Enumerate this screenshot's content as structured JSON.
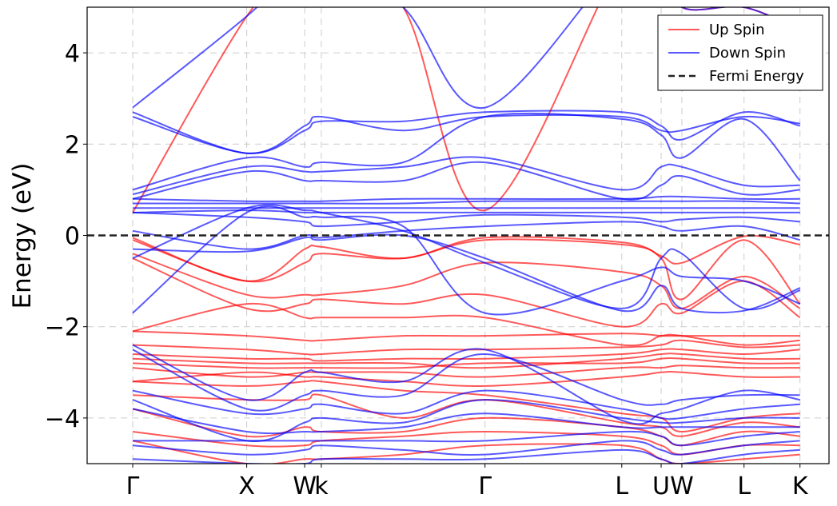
{
  "chart_data": {
    "type": "line",
    "title": "",
    "xlabel": "",
    "ylabel": "Energy (eV)",
    "ylim": [
      -5,
      5
    ],
    "xlim": [
      -0.22,
      3.36
    ],
    "grid": true,
    "legend_position": "top-right",
    "yticks": [
      {
        "value": 4,
        "label": "4"
      },
      {
        "value": 2,
        "label": "2"
      },
      {
        "value": 0,
        "label": "0"
      },
      {
        "value": -2,
        "label": "−2"
      },
      {
        "value": -4,
        "label": "−4"
      }
    ],
    "kpoints": [
      {
        "label": "Γ",
        "x": 0.0
      },
      {
        "label": "X",
        "x": 0.55
      },
      {
        "label": "W",
        "x": 0.83
      },
      {
        "label": "k",
        "x": 0.91
      },
      {
        "label": "Γ",
        "x": 1.7
      },
      {
        "label": "L",
        "x": 2.36
      },
      {
        "label": "U",
        "x": 2.55
      },
      {
        "label": "W",
        "x": 2.65
      },
      {
        "label": "L",
        "x": 2.95
      },
      {
        "label": "K",
        "x": 3.22
      }
    ],
    "fermi_energy": 0,
    "legend": [
      {
        "label": "Up Spin",
        "color": "#ff0000",
        "style": "solid"
      },
      {
        "label": "Down Spin",
        "color": "#0000ff",
        "style": "solid"
      },
      {
        "label": "Fermi Energy",
        "color": "#222222",
        "style": "dashed"
      }
    ],
    "series": [
      {
        "spin": "up",
        "values": [
          0.5,
          4.8,
          6.0,
          6.0,
          5.0,
          0.55,
          6.0,
          6.0,
          5.0,
          5.0,
          4.5
        ]
      },
      {
        "spin": "up",
        "values": [
          -0.05,
          -1.0,
          -0.3,
          -0.25,
          -0.5,
          -0.05,
          -0.15,
          -0.45,
          -0.6,
          -0.02,
          -0.2
        ]
      },
      {
        "spin": "up",
        "values": [
          -0.1,
          -1.0,
          -0.6,
          -0.4,
          -0.5,
          -0.1,
          -0.2,
          -0.5,
          -1.4,
          -0.1,
          -1.5
        ]
      },
      {
        "spin": "up",
        "values": [
          -0.4,
          -1.3,
          -1.3,
          -1.3,
          -1.1,
          -0.6,
          -0.8,
          -1.1,
          -1.6,
          -0.9,
          -1.6
        ]
      },
      {
        "spin": "up",
        "values": [
          -0.5,
          -1.6,
          -1.5,
          -1.4,
          -1.5,
          -1.3,
          -2.0,
          -1.5,
          -1.7,
          -1.0,
          -1.8
        ]
      },
      {
        "spin": "up",
        "values": [
          -2.1,
          -1.5,
          -1.8,
          -1.8,
          -1.8,
          -1.8,
          -2.4,
          -2.2,
          -2.2,
          -2.4,
          -2.3
        ]
      },
      {
        "spin": "up",
        "values": [
          -2.1,
          -2.2,
          -2.3,
          -2.3,
          -2.2,
          -2.2,
          -2.15,
          -2.2,
          -2.2,
          -2.2,
          -2.2
        ]
      },
      {
        "spin": "up",
        "values": [
          -2.4,
          -2.5,
          -2.6,
          -2.6,
          -2.5,
          -2.5,
          -2.45,
          -2.4,
          -2.3,
          -2.45,
          -2.4
        ]
      },
      {
        "spin": "up",
        "values": [
          -2.6,
          -2.7,
          -2.7,
          -2.75,
          -2.7,
          -2.7,
          -2.6,
          -2.5,
          -2.5,
          -2.6,
          -2.5
        ]
      },
      {
        "spin": "up",
        "values": [
          -2.7,
          -2.8,
          -2.8,
          -2.8,
          -2.8,
          -2.9,
          -2.7,
          -2.6,
          -2.6,
          -2.7,
          -2.7
        ]
      },
      {
        "spin": "up",
        "values": [
          -2.8,
          -2.9,
          -2.9,
          -2.9,
          -2.9,
          -2.8,
          -2.8,
          -2.7,
          -2.7,
          -2.8,
          -2.8
        ]
      },
      {
        "spin": "up",
        "values": [
          -2.9,
          -3.1,
          -3.0,
          -3.0,
          -3.0,
          -3.1,
          -2.9,
          -2.9,
          -2.85,
          -2.9,
          -2.9
        ]
      },
      {
        "spin": "up",
        "values": [
          -3.2,
          -3.0,
          -3.1,
          -3.1,
          -3.2,
          -3.3,
          -3.1,
          -3.0,
          -3.0,
          -3.1,
          -3.1
        ]
      },
      {
        "spin": "up",
        "values": [
          -3.2,
          -3.3,
          -3.2,
          -3.2,
          -3.4,
          -3.5,
          -3.9,
          -4.0,
          -4.3,
          -4.0,
          -3.9
        ]
      },
      {
        "spin": "up",
        "values": [
          -3.5,
          -3.6,
          -3.6,
          -3.5,
          -4.0,
          -3.6,
          -4.1,
          -4.2,
          -4.4,
          -4.1,
          -4.2
        ]
      },
      {
        "spin": "up",
        "values": [
          -3.8,
          -4.4,
          -4.2,
          -4.3,
          -4.3,
          -4.0,
          -4.2,
          -4.4,
          -4.6,
          -4.3,
          -4.4
        ]
      },
      {
        "spin": "up",
        "values": [
          -4.3,
          -4.6,
          -4.6,
          -4.5,
          -4.4,
          -4.3,
          -4.4,
          -4.6,
          -4.8,
          -4.6,
          -4.6
        ]
      },
      {
        "spin": "up",
        "values": [
          -4.5,
          -5.0,
          -4.9,
          -4.9,
          -4.8,
          -4.6,
          -4.6,
          -4.9,
          -5.0,
          -4.9,
          -4.8
        ]
      },
      {
        "spin": "down",
        "values": [
          2.8,
          4.8,
          6.0,
          6.0,
          5.0,
          2.8,
          6.0,
          6.0,
          5.0,
          5.0,
          4.5
        ]
      },
      {
        "spin": "down",
        "values": [
          2.7,
          1.8,
          2.4,
          2.6,
          2.3,
          2.6,
          2.6,
          2.3,
          2.3,
          2.6,
          2.45
        ]
      },
      {
        "spin": "down",
        "values": [
          2.6,
          1.8,
          2.3,
          2.5,
          2.5,
          2.7,
          2.7,
          2.4,
          2.1,
          2.7,
          2.4
        ]
      },
      {
        "spin": "down",
        "values": [
          1.0,
          1.7,
          1.5,
          1.6,
          1.6,
          2.6,
          2.55,
          2.2,
          1.7,
          2.55,
          1.2
        ]
      },
      {
        "spin": "down",
        "values": [
          0.9,
          1.5,
          1.4,
          1.4,
          1.5,
          1.7,
          1.0,
          1.5,
          1.5,
          1.1,
          1.1
        ]
      },
      {
        "spin": "down",
        "values": [
          0.8,
          1.4,
          1.2,
          1.2,
          1.2,
          1.6,
          0.8,
          1.1,
          1.3,
          0.9,
          1.0
        ]
      },
      {
        "spin": "down",
        "values": [
          0.8,
          0.75,
          0.75,
          0.75,
          0.8,
          0.8,
          0.8,
          0.85,
          0.85,
          0.8,
          0.8
        ]
      },
      {
        "spin": "down",
        "values": [
          0.7,
          0.7,
          0.7,
          0.7,
          0.7,
          0.75,
          0.75,
          0.75,
          0.75,
          0.75,
          0.7
        ]
      },
      {
        "spin": "down",
        "values": [
          0.6,
          0.6,
          0.6,
          0.6,
          0.6,
          0.6,
          0.6,
          0.6,
          0.6,
          0.6,
          0.6
        ]
      },
      {
        "spin": "down",
        "values": [
          0.5,
          0.55,
          0.5,
          0.5,
          0.5,
          0.5,
          0.5,
          0.5,
          0.5,
          0.5,
          0.5
        ]
      },
      {
        "spin": "down",
        "values": [
          0.5,
          0.4,
          0.3,
          0.2,
          0.3,
          0.45,
          0.4,
          0.3,
          0.35,
          0.4,
          0.3
        ]
      },
      {
        "spin": "down",
        "values": [
          0.1,
          -0.3,
          0.0,
          -0.05,
          0.1,
          0.2,
          0.3,
          0.2,
          0.1,
          0.2,
          -0.1
        ]
      },
      {
        "spin": "down",
        "values": [
          -0.3,
          -0.35,
          -0.05,
          -0.1,
          0.0,
          -0.5,
          -1.65,
          -1.1,
          -1.6,
          -1.65,
          -1.15
        ]
      },
      {
        "spin": "down",
        "values": [
          -0.5,
          0.6,
          0.55,
          0.5,
          0.1,
          -0.6,
          -1.6,
          -0.5,
          -0.4,
          -1.6,
          -1.2
        ]
      },
      {
        "spin": "down",
        "values": [
          -1.7,
          0.5,
          0.4,
          0.4,
          0.2,
          -1.7,
          -1.0,
          -0.7,
          -0.9,
          -1.0,
          -1.5
        ]
      },
      {
        "spin": "down",
        "values": [
          -2.4,
          -3.6,
          -3.0,
          -3.0,
          -3.2,
          -2.5,
          -4.05,
          -3.9,
          -3.8,
          -3.4,
          -3.6
        ]
      },
      {
        "spin": "down",
        "values": [
          -2.5,
          -3.8,
          -3.5,
          -3.4,
          -3.5,
          -2.6,
          -3.6,
          -3.7,
          -3.6,
          -3.5,
          -3.5
        ]
      },
      {
        "spin": "down",
        "values": [
          -3.4,
          -3.9,
          -3.8,
          -3.7,
          -3.9,
          -3.4,
          -3.8,
          -4.0,
          -4.0,
          -3.8,
          -3.7
        ]
      },
      {
        "spin": "down",
        "values": [
          -3.6,
          -4.5,
          -4.1,
          -4.0,
          -4.1,
          -3.6,
          -4.0,
          -4.1,
          -4.1,
          -4.0,
          -4.0
        ]
      },
      {
        "spin": "down",
        "values": [
          -3.8,
          -4.3,
          -4.3,
          -4.3,
          -4.2,
          -3.9,
          -4.2,
          -4.2,
          -4.2,
          -4.2,
          -4.2
        ]
      },
      {
        "spin": "down",
        "values": [
          -4.5,
          -4.5,
          -4.5,
          -4.5,
          -4.5,
          -4.5,
          -4.3,
          -4.4,
          -4.6,
          -4.4,
          -4.3
        ]
      },
      {
        "spin": "down",
        "values": [
          -4.6,
          -4.8,
          -4.7,
          -4.6,
          -4.7,
          -4.8,
          -4.5,
          -4.7,
          -4.8,
          -4.6,
          -4.5
        ]
      },
      {
        "spin": "down",
        "values": [
          -4.9,
          -5.0,
          -5.0,
          -4.9,
          -4.9,
          -4.9,
          -4.7,
          -4.9,
          -5.0,
          -4.8,
          -4.7
        ]
      }
    ]
  }
}
